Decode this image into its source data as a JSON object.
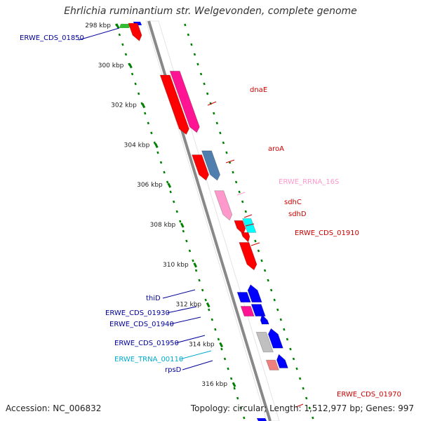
{
  "title": "Ehrlichia ruminantium str. Welgevonden, complete genome",
  "footer": {
    "accession": "Accession: NC_006832",
    "summary": "Topology: circular; Length: 1,512,977 bp; Genes: 997"
  },
  "scale_labels": [
    {
      "kbp": 298,
      "label": "298 kbp"
    },
    {
      "kbp": 300,
      "label": "300 kbp"
    },
    {
      "kbp": 302,
      "label": "302 kbp"
    },
    {
      "kbp": 304,
      "label": "304 kbp"
    },
    {
      "kbp": 306,
      "label": "306 kbp"
    },
    {
      "kbp": 308,
      "label": "308 kbp"
    },
    {
      "kbp": 310,
      "label": "310 kbp"
    },
    {
      "kbp": 312,
      "label": "312 kbp"
    },
    {
      "kbp": 314,
      "label": "314 kbp"
    },
    {
      "kbp": 316,
      "label": "316 kbp"
    }
  ],
  "features": [
    {
      "kbp": 297.9,
      "name": "ERWE_CDS_01850",
      "side": "left",
      "color": "#000099"
    },
    {
      "kbp": 302.0,
      "name": "dnaE",
      "side": "right",
      "color": "#cc0000"
    },
    {
      "kbp": 304.3,
      "name": "aroA",
      "side": "right",
      "color": "#cc0000"
    },
    {
      "kbp": 306.2,
      "name": "ERWE_RRNA_16S",
      "side": "right",
      "color": "#ff99cc"
    },
    {
      "kbp": 307.3,
      "name": "sdhC",
      "side": "right",
      "color": "#cc0000"
    },
    {
      "kbp": 307.8,
      "name": "sdhD",
      "side": "right",
      "color": "#cc0000"
    },
    {
      "kbp": 308.7,
      "name": "ERWE_CDS_01910",
      "side": "right",
      "color": "#cc0000"
    },
    {
      "kbp": 311.4,
      "name": "thiD",
      "side": "left",
      "color": "#000099"
    },
    {
      "kbp": 312.2,
      "name": "ERWE_CDS_01930",
      "side": "left",
      "color": "#000099"
    },
    {
      "kbp": 312.9,
      "name": "ERWE_CDS_01940",
      "side": "left",
      "color": "#000099"
    },
    {
      "kbp": 313.8,
      "name": "ERWE_CDS_01950",
      "side": "left",
      "color": "#000099"
    },
    {
      "kbp": 314.6,
      "name": "ERWE_TRNA_00110",
      "side": "left",
      "color": "#00aacc"
    },
    {
      "kbp": 315.0,
      "name": "rpsD",
      "side": "left",
      "color": "#000099"
    },
    {
      "kbp": 317.5,
      "name": "ERWE_CDS_01970",
      "side": "right",
      "color": "#cc0000"
    }
  ],
  "colors": {
    "red": "#ff0000",
    "magenta": "#ff1493",
    "steelblue": "#4f7eaf",
    "pink": "#ff99cc",
    "cyan": "#00ffff",
    "blue": "#0000ff",
    "gray": "#c0c0c0",
    "salmon": "#f08080",
    "green": "#33bb33",
    "ticks": "#008000",
    "backbone": "#888888"
  }
}
